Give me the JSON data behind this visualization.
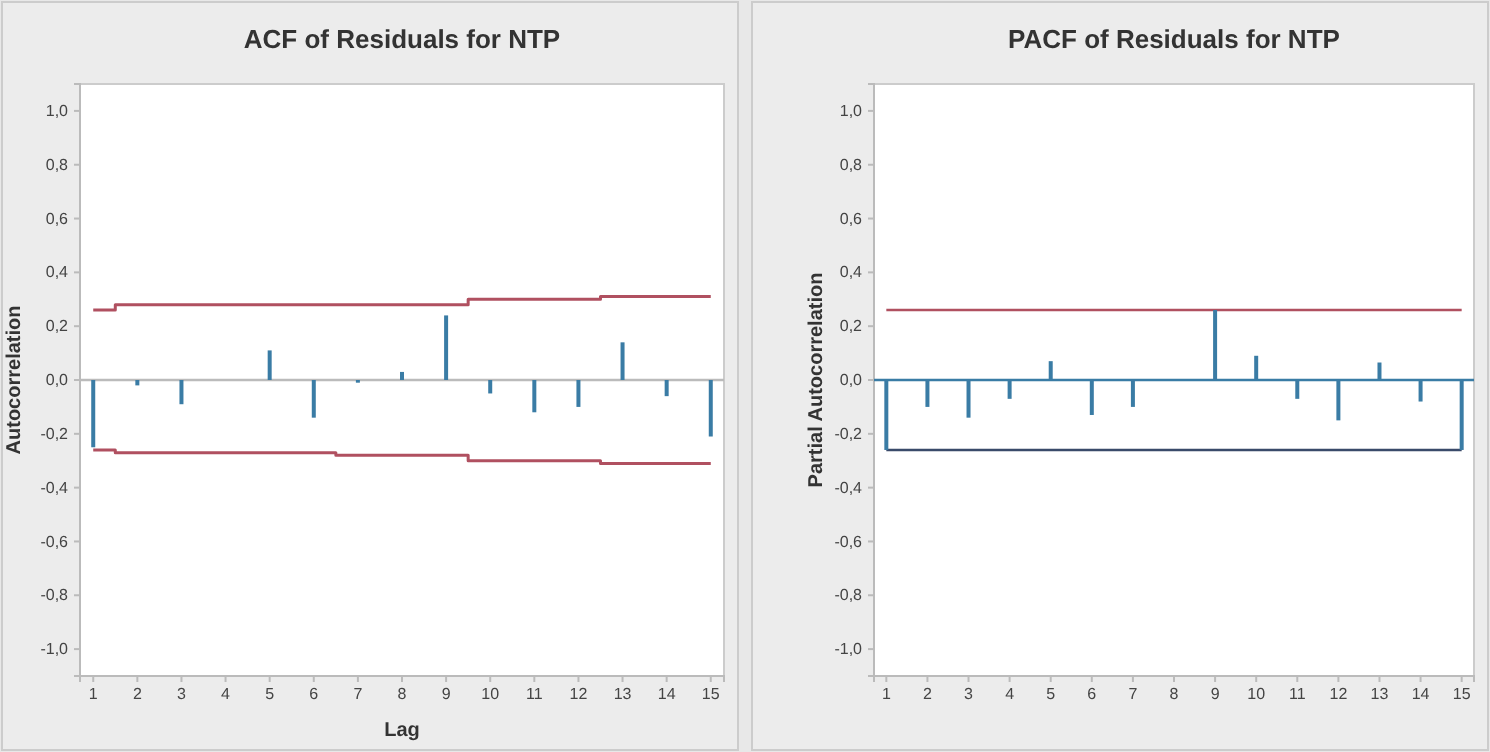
{
  "chart_data": [
    {
      "type": "bar",
      "title": "ACF of Residuals for NTP",
      "xlabel": "Lag",
      "ylabel": "Autocorrelation",
      "x": [
        1,
        2,
        3,
        4,
        5,
        6,
        7,
        8,
        9,
        10,
        11,
        12,
        13,
        14,
        15
      ],
      "series": [
        {
          "color": "#3a7ca5",
          "values": [
            -0.25,
            -0.02,
            -0.09,
            0,
            0.11,
            -0.14,
            -0.01,
            0.03,
            0.24,
            -0.05,
            -0.12,
            -0.1,
            0.14,
            -0.06,
            -0.21
          ]
        },
        {
          "type": "step",
          "color": "#b05060",
          "values": [
            0.26,
            0.28,
            0.28,
            0.28,
            0.28,
            0.28,
            0.28,
            0.28,
            0.28,
            0.3,
            0.3,
            0.3,
            0.31,
            0.31,
            0.31
          ]
        },
        {
          "type": "step",
          "color": "#b05060",
          "values": [
            -0.26,
            -0.27,
            -0.27,
            -0.27,
            -0.27,
            -0.27,
            -0.28,
            -0.28,
            -0.28,
            -0.3,
            -0.3,
            -0.3,
            -0.31,
            -0.31,
            -0.31
          ]
        }
      ],
      "ref_lines": [
        {
          "axis": "y",
          "value": 0,
          "color": "#bbbbbb"
        }
      ],
      "xlim": [
        0.7,
        15.3
      ],
      "xticks": [
        1,
        2,
        3,
        4,
        5,
        6,
        7,
        8,
        9,
        10,
        11,
        12,
        13,
        14,
        15
      ],
      "ylim": [
        -1.1,
        1.1
      ],
      "yticks": [
        {
          "value": -1,
          "label": "-1,0"
        },
        {
          "value": -0.8,
          "label": "-0,8"
        },
        {
          "value": -0.6,
          "label": "-0,6"
        },
        {
          "value": -0.4,
          "label": "-0,4"
        },
        {
          "value": -0.2,
          "label": "-0,2"
        },
        {
          "value": 0,
          "label": "0,0"
        },
        {
          "value": 0.2,
          "label": "0,2"
        },
        {
          "value": 0.4,
          "label": "0,4"
        },
        {
          "value": 0.6,
          "label": "0,6"
        },
        {
          "value": 0.8,
          "label": "0,8"
        },
        {
          "value": 1,
          "label": "1,0"
        }
      ]
    },
    {
      "type": "bar",
      "title": "PACF of Residuals for NTP",
      "ylabel": "Partial Autocorrelation",
      "x": [
        1,
        2,
        3,
        4,
        5,
        6,
        7,
        8,
        9,
        10,
        11,
        12,
        13,
        14,
        15
      ],
      "series": [
        {
          "color": "#3a7ca5",
          "values": [
            -0.26,
            -0.1,
            -0.14,
            -0.07,
            0.07,
            -0.13,
            -0.1,
            0,
            0.26,
            0.09,
            -0.07,
            -0.15,
            0.065,
            -0.08,
            -0.26
          ]
        }
      ],
      "ref_lines": [
        {
          "axis": "y",
          "value": 0,
          "color": "#3a7ca5"
        },
        {
          "axis": "y",
          "value": 0.26,
          "color": "#b05060"
        },
        {
          "axis": "y",
          "value": -0.26,
          "color": "#3a4a6a"
        }
      ],
      "xlim": [
        0.7,
        15.3
      ],
      "xticks": [
        1,
        2,
        3,
        4,
        5,
        6,
        7,
        8,
        9,
        10,
        11,
        12,
        13,
        14,
        15
      ],
      "ylim": [
        -1.1,
        1.1
      ],
      "yticks": [
        {
          "value": -1,
          "label": "-1,0"
        },
        {
          "value": -0.8,
          "label": "-0,8"
        },
        {
          "value": -0.6,
          "label": "-0,6"
        },
        {
          "value": -0.4,
          "label": "-0,4"
        },
        {
          "value": -0.2,
          "label": "-0,2"
        },
        {
          "value": 0,
          "label": "0,0"
        },
        {
          "value": 0.2,
          "label": "0,2"
        },
        {
          "value": 0.4,
          "label": "0,4"
        },
        {
          "value": 0.6,
          "label": "0,6"
        },
        {
          "value": 0.8,
          "label": "0,8"
        },
        {
          "value": 1,
          "label": "1,0"
        }
      ]
    }
  ]
}
